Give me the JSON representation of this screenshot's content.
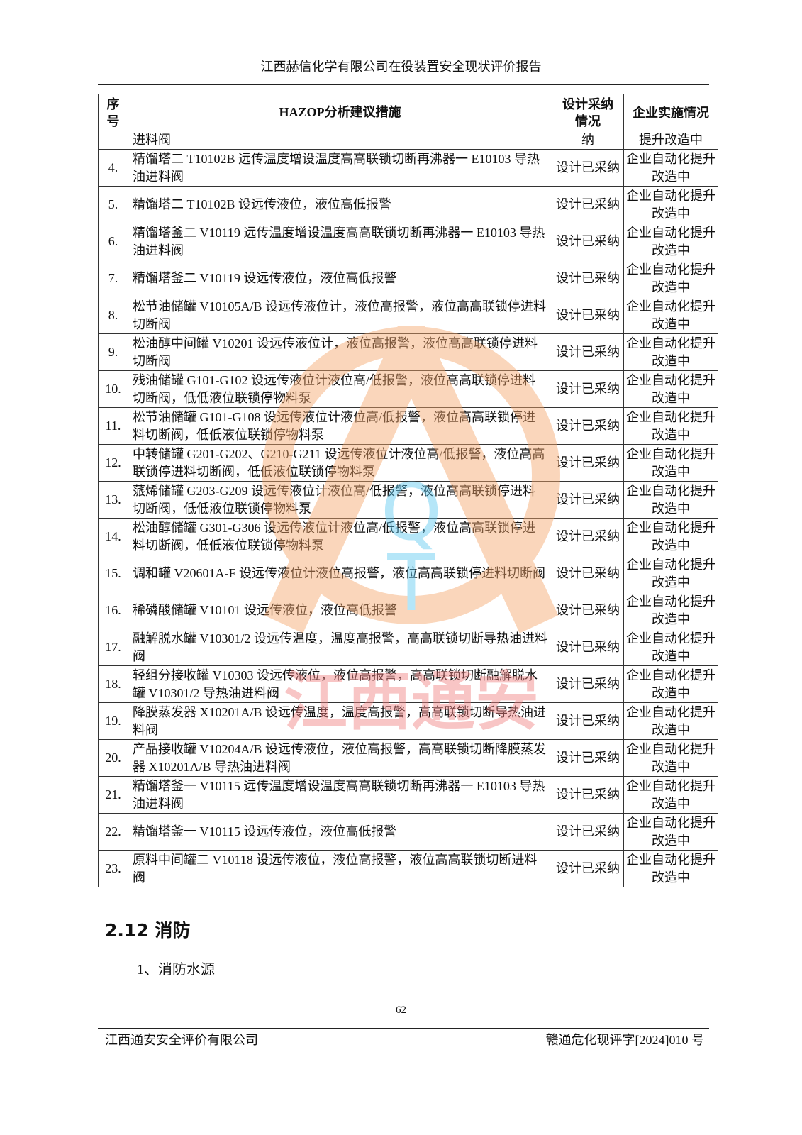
{
  "header": {
    "title": "江西赫信化学有限公司在役装置安全现状评价报告"
  },
  "table": {
    "columns": [
      "序号",
      "HAZOP分析建议措施",
      "设计采纳情况",
      "企业实施情况"
    ],
    "continuation": {
      "measure": "进料阀",
      "design": "纳",
      "impl": "提升改造中"
    },
    "rows": [
      {
        "no": "4.",
        "measure": "精馏塔二 T10102B 远传温度增设温度高高联锁切断再沸器一 E10103 导热油进料阀",
        "design": "设计已采纳",
        "impl": "企业自动化提升改造中"
      },
      {
        "no": "5.",
        "measure": "精馏塔二 T10102B 设远传液位，液位高低报警",
        "design": "设计已采纳",
        "impl": "企业自动化提升改造中"
      },
      {
        "no": "6.",
        "measure": "精馏塔釜二 V10119 远传温度增设温度高高联锁切断再沸器一 E10103 导热油进料阀",
        "design": "设计已采纳",
        "impl": "企业自动化提升改造中"
      },
      {
        "no": "7.",
        "measure": "精馏塔釜二 V10119 设远传液位，液位高低报警",
        "design": "设计已采纳",
        "impl": "企业自动化提升改造中"
      },
      {
        "no": "8.",
        "measure": "松节油储罐 V10105A/B 设远传液位计，液位高报警，液位高高联锁停进料切断阀",
        "design": "设计已采纳",
        "impl": "企业自动化提升改造中"
      },
      {
        "no": "9.",
        "measure": "松油醇中间罐 V10201 设远传液位计，液位高报警，液位高高联锁停进料切断阀",
        "design": "设计已采纳",
        "impl": "企业自动化提升改造中"
      },
      {
        "no": "10.",
        "measure": "残油储罐 G101-G102 设远传液位计液位高/低报警，液位高高联锁停进料切断阀，低低液位联锁停物料泵",
        "design": "设计已采纳",
        "impl": "企业自动化提升改造中"
      },
      {
        "no": "11.",
        "measure": "松节油储罐 G101-G108 设远传液位计液位高/低报警，液位高高联锁停进料切断阀，低低液位联锁停物料泵",
        "design": "设计已采纳",
        "impl": "企业自动化提升改造中"
      },
      {
        "no": "12.",
        "measure": "中转储罐 G201-G202、G210-G211 设远传液位计液位高/低报警，液位高高联锁停进料切断阀，低低液位联锁停物料泵",
        "design": "设计已采纳",
        "impl": "企业自动化提升改造中"
      },
      {
        "no": "13.",
        "measure": "蒎烯储罐 G203-G209 设远传液位计液位高/低报警，液位高高联锁停进料切断阀，低低液位联锁停物料泵",
        "design": "设计已采纳",
        "impl": "企业自动化提升改造中"
      },
      {
        "no": "14.",
        "measure": "松油醇储罐 G301-G306 设远传液位计液位高/低报警，液位高高联锁停进料切断阀，低低液位联锁停物料泵",
        "design": "设计已采纳",
        "impl": "企业自动化提升改造中"
      },
      {
        "no": "15.",
        "measure": "调和罐 V20601A-F 设远传液位计液位高报警，液位高高联锁停进料切断阀",
        "design": "设计已采纳",
        "impl": "企业自动化提升改造中"
      },
      {
        "no": "16.",
        "measure": "稀磷酸储罐 V10101 设远传液位，液位高低报警",
        "design": "设计已采纳",
        "impl": "企业自动化提升改造中"
      },
      {
        "no": "17.",
        "measure": "融解脱水罐 V10301/2 设远传温度，温度高报警，高高联锁切断导热油进料阀",
        "design": "设计已采纳",
        "impl": "企业自动化提升改造中"
      },
      {
        "no": "18.",
        "measure": "轻组分接收罐 V10303 设远传液位，液位高报警，高高联锁切断融解脱水罐 V10301/2 导热油进料阀",
        "design": "设计已采纳",
        "impl": "企业自动化提升改造中"
      },
      {
        "no": "19.",
        "measure": "降膜蒸发器 X10201A/B 设远传温度，温度高报警，高高联锁切断导热油进料阀",
        "design": "设计已采纳",
        "impl": "企业自动化提升改造中"
      },
      {
        "no": "20.",
        "measure": "产品接收罐 V10204A/B 设远传液位，液位高报警，高高联锁切断降膜蒸发器 X10201A/B 导热油进料阀",
        "design": "设计已采纳",
        "impl": "企业自动化提升改造中"
      },
      {
        "no": "21.",
        "measure": "精馏塔釜一 V10115 远传温度增设温度高高联锁切断再沸器一 E10103 导热油进料阀",
        "design": "设计已采纳",
        "impl": "企业自动化提升改造中"
      },
      {
        "no": "22.",
        "measure": "精馏塔釜一 V10115 设远传液位，液位高低报警",
        "design": "设计已采纳",
        "impl": "企业自动化提升改造中"
      },
      {
        "no": "23.",
        "measure": "原料中间罐二 V10118 设远传液位，液位高报警，液位高高联锁切断进料阀",
        "design": "设计已采纳",
        "impl": "企业自动化提升改造中"
      }
    ]
  },
  "watermark": {
    "letters": "QTA",
    "text": "江西通安",
    "colors": {
      "ring": "#f6a66a",
      "letters": "#5cc8f0",
      "text": "#f08080"
    }
  },
  "section": {
    "title": "2.12 消防",
    "subtitle": "1、消防水源"
  },
  "footer": {
    "page_number": "62",
    "left": "江西通安安全评价有限公司",
    "right": "赣通危化现评字[2024]010 号"
  }
}
